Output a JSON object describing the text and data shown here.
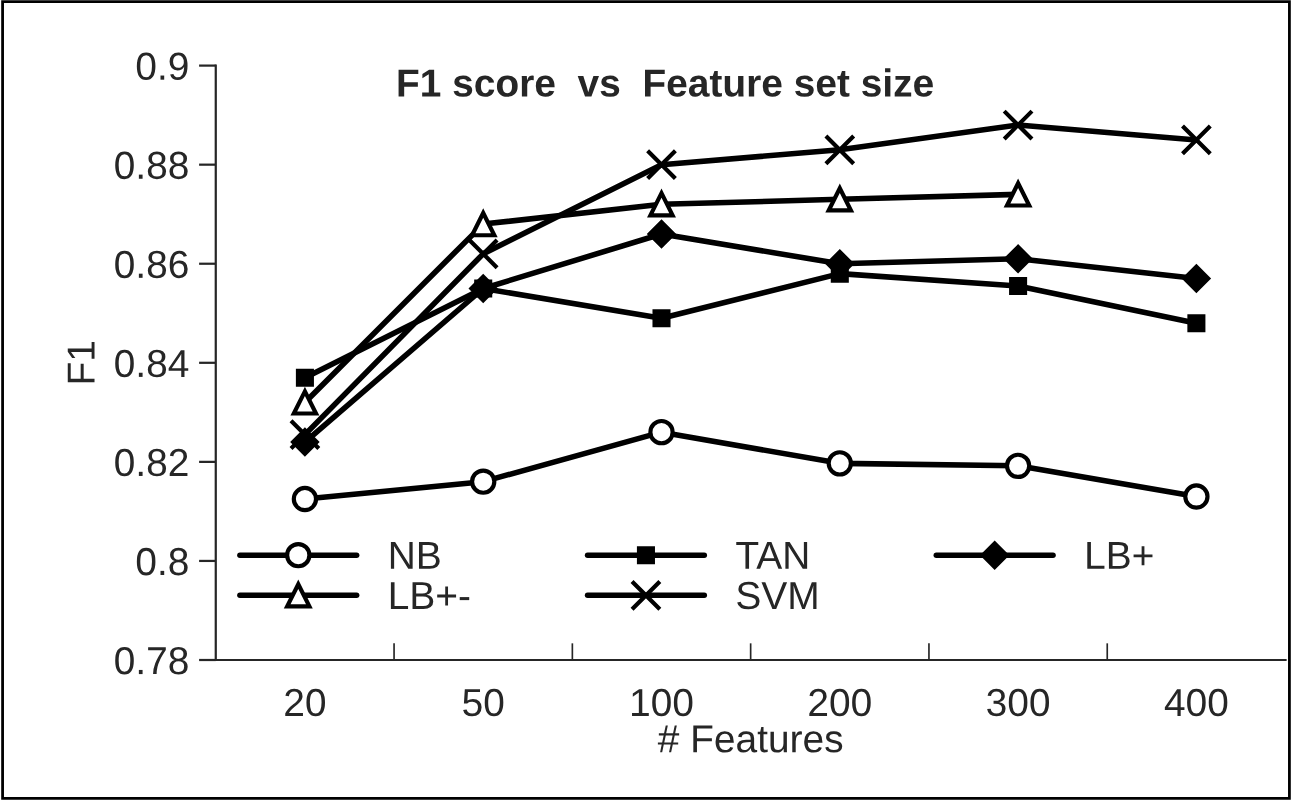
{
  "chart_data": {
    "type": "line",
    "title": "F1 score  vs  Feature set size",
    "xlabel": "# Features",
    "ylabel": "F1",
    "categories": [
      "20",
      "50",
      "100",
      "200",
      "300",
      "400"
    ],
    "series": [
      {
        "name": "NB",
        "color": "#000000",
        "marker": "circle",
        "values": [
          0.8125,
          0.816,
          0.826,
          0.8197,
          0.8192,
          0.813
        ]
      },
      {
        "name": "TAN",
        "color": "#000000",
        "marker": "square",
        "values": [
          0.837,
          0.855,
          0.849,
          0.858,
          0.8555,
          0.848
        ]
      },
      {
        "name": "LB+",
        "color": "#000000",
        "marker": "diamond",
        "values": [
          0.824,
          0.855,
          0.866,
          0.86,
          0.861,
          0.857
        ]
      },
      {
        "name": "LB+-",
        "color": "#000000",
        "marker": "triangle",
        "values": [
          0.832,
          0.868,
          0.872,
          0.873,
          0.874,
          null
        ]
      },
      {
        "name": "SVM",
        "color": "#000000",
        "marker": "cross",
        "values": [
          0.8255,
          0.862,
          0.88,
          0.883,
          0.888,
          0.885
        ]
      }
    ],
    "ylim": [
      0.78,
      0.9
    ],
    "yticks": [
      0.78,
      0.8,
      0.82,
      0.84,
      0.86,
      0.88,
      0.9
    ],
    "grid": false,
    "legend": "bottom",
    "line_style": "solid"
  }
}
